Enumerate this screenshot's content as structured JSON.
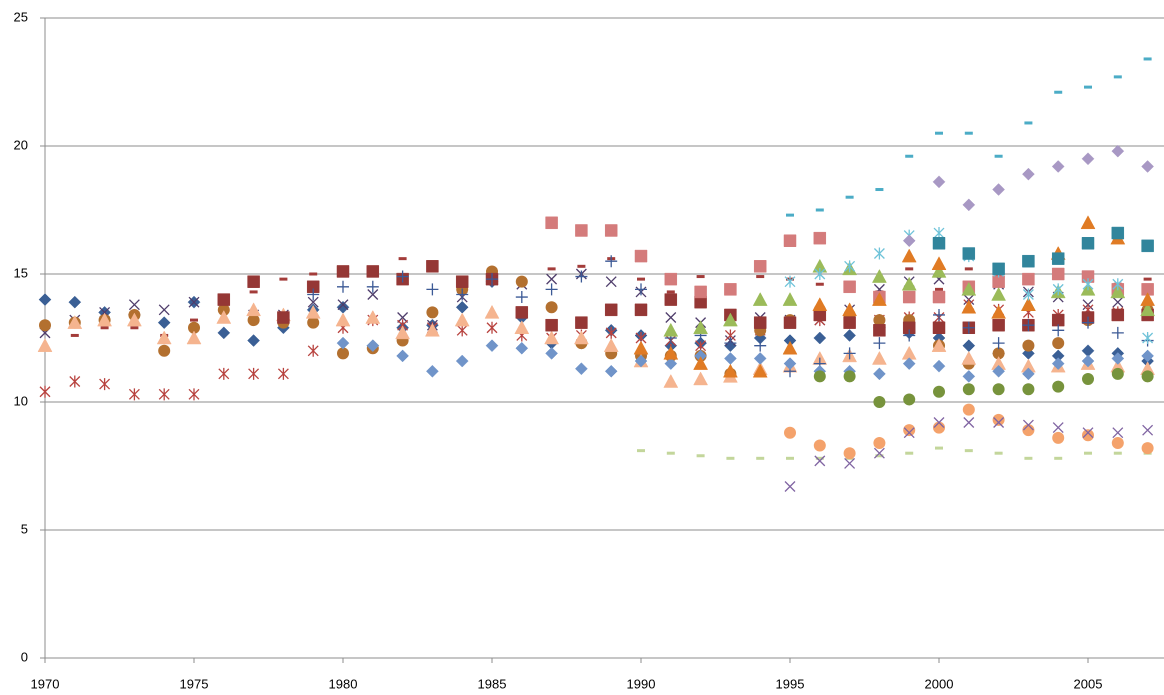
{
  "chart_data": {
    "type": "scatter",
    "xlim": [
      1970,
      2007.55
    ],
    "ylim": [
      0,
      25
    ],
    "xticks": [
      1970,
      1975,
      1980,
      1985,
      1990,
      1995,
      2000,
      2005
    ],
    "yticks": [
      0,
      5,
      10,
      15,
      20,
      25
    ],
    "grid": true,
    "series": [
      {
        "color": "#3a5f95",
        "marker": "diamond",
        "x": [
          1970,
          1971,
          1972,
          1973,
          1974,
          1975,
          1976,
          1977,
          1978,
          1979,
          1980,
          1981,
          1982,
          1983,
          1984,
          1985,
          1986,
          1987,
          1988,
          1989,
          1990,
          1991,
          1992,
          1993,
          1994,
          1995,
          1996,
          1997,
          1998,
          1999,
          2000,
          2001,
          2002,
          2003,
          2004,
          2005,
          2006,
          2007
        ],
        "values": [
          14,
          13.9,
          13.5,
          13.4,
          13.1,
          13.9,
          12.7,
          12.4,
          12.9,
          13.6,
          13.7,
          12.2,
          12.9,
          13,
          13.7,
          14.7,
          13.3,
          12.3,
          12.3,
          12.8,
          12.6,
          12.2,
          12.3,
          12.2,
          12.5,
          12.4,
          12.5,
          12.6,
          12.9,
          12.7,
          12.5,
          12.2,
          11.9,
          11.9,
          11.8,
          12,
          11.9,
          11.6
        ]
      },
      {
        "color": "#a33c3a",
        "marker": "dash",
        "x": [
          1970,
          1971,
          1972,
          1973,
          1974,
          1975,
          1976,
          1977,
          1978,
          1979,
          1980,
          1981,
          1982,
          1983,
          1984,
          1985,
          1986,
          1987,
          1988,
          1989,
          1990,
          1991,
          1992,
          1993,
          1994,
          1995,
          1996,
          1997,
          1998,
          1999,
          2000,
          2001,
          2002,
          2003,
          2004,
          2005,
          2006,
          2007
        ],
        "values": [
          12.1,
          12.6,
          12.9,
          12.9,
          12.6,
          13.2,
          14.1,
          14.3,
          14.8,
          15,
          15.1,
          15.1,
          15.6,
          15.3,
          14.4,
          15,
          14.7,
          15.2,
          15.3,
          15.6,
          14.8,
          14.3,
          14.9,
          14.4,
          14.9,
          14.8,
          14.6,
          14.4,
          14.3,
          15.2,
          14.4,
          15.2,
          15,
          14.8,
          14.9,
          14.3,
          14.6,
          14.8
        ]
      },
      {
        "color": "#4f3d6b",
        "marker": "x",
        "x": [
          1970,
          1971,
          1972,
          1973,
          1974,
          1975,
          1976,
          1977,
          1978,
          1979,
          1980,
          1981,
          1982,
          1983,
          1984,
          1985,
          1986,
          1987,
          1988,
          1989,
          1990,
          1991,
          1992,
          1993,
          1994,
          1995,
          1996,
          1997,
          1998,
          1999,
          2000,
          2001,
          2002,
          2003,
          2004,
          2005,
          2006,
          2007
        ],
        "values": [
          12.7,
          13.2,
          13.5,
          13.8,
          13.6,
          13.9,
          13.7,
          13.4,
          13.4,
          13.9,
          13.8,
          14.2,
          13.3,
          13,
          14.1,
          14.9,
          14.6,
          14.8,
          15,
          14.7,
          14.3,
          13.3,
          13.1,
          12.4,
          13.3,
          13.2,
          13.2,
          13.6,
          14.4,
          14.7,
          14.8,
          14,
          14.6,
          14.3,
          14.1,
          13.8,
          13.9,
          13.5
        ]
      },
      {
        "color": "#b8433f",
        "marker": "asterisk",
        "x": [
          1970,
          1971,
          1972,
          1973,
          1974,
          1975,
          1976,
          1977,
          1978,
          1979,
          1980,
          1981,
          1982,
          1983,
          1984,
          1985,
          1986,
          1987,
          1988,
          1989,
          1990,
          1991,
          1992,
          1993,
          1994,
          1995,
          1996,
          1997,
          1998,
          1999,
          2000,
          2001,
          2002,
          2003,
          2004,
          2005,
          2006,
          2007
        ],
        "values": [
          10.4,
          10.8,
          10.7,
          10.3,
          10.3,
          10.3,
          11.1,
          11.1,
          11.1,
          12,
          12.9,
          13.2,
          13,
          12.9,
          12.8,
          12.9,
          12.6,
          12.5,
          12.6,
          12.7,
          12.5,
          12.4,
          12.2,
          12.6,
          12.8,
          13.1,
          13.2,
          13.1,
          13.2,
          13.3,
          13.3,
          13.8,
          13.6,
          13.5,
          13.4,
          13.6,
          13.5,
          13.7
        ]
      },
      {
        "color": "#b3702f",
        "marker": "circle",
        "x": [
          1970,
          1971,
          1972,
          1973,
          1974,
          1975,
          1976,
          1977,
          1978,
          1979,
          1980,
          1981,
          1982,
          1983,
          1984,
          1985,
          1986,
          1987,
          1988,
          1989,
          1990,
          1991,
          1992,
          1993,
          1994,
          1995,
          1996,
          1997,
          1998,
          1999,
          2000,
          2001,
          2002,
          2003,
          2004,
          2005,
          2006,
          2007
        ],
        "values": [
          13,
          13.1,
          13.2,
          13.4,
          12,
          12.9,
          13.6,
          13.2,
          13.1,
          13.1,
          11.9,
          12.1,
          12.4,
          13.5,
          14.4,
          15.1,
          14.7,
          13.7,
          12.3,
          11.9,
          11.8,
          11.8,
          11.8,
          11.1,
          12.8,
          13.2,
          13.6,
          13.4,
          13.2,
          13.2,
          12.2,
          11.5,
          11.9,
          12.2,
          12.3,
          13.2,
          13.4,
          13.6
        ]
      },
      {
        "color": "#f5b48f",
        "marker": "triangle",
        "x": [
          1970,
          1971,
          1972,
          1973,
          1974,
          1975,
          1976,
          1977,
          1978,
          1979,
          1980,
          1981,
          1982,
          1983,
          1984,
          1985,
          1986,
          1987,
          1988,
          1989,
          1990,
          1991,
          1992,
          1993,
          1994,
          1995,
          1996,
          1997,
          1998,
          1999,
          2000,
          2001,
          2002,
          2003,
          2004,
          2005,
          2006,
          2007
        ],
        "values": [
          12.2,
          13.1,
          13.2,
          13.2,
          12.5,
          12.5,
          13.3,
          13.6,
          13.4,
          13.5,
          13.2,
          13.3,
          12.7,
          12.8,
          13.2,
          13.5,
          12.9,
          12.5,
          12.5,
          12.2,
          11.6,
          10.8,
          10.9,
          11,
          11.3,
          11.4,
          11.7,
          11.8,
          11.7,
          11.9,
          12.2,
          11.7,
          11.5,
          11.4,
          11.4,
          11.5,
          11.4,
          11.3
        ]
      },
      {
        "color": "#953735",
        "marker": "square",
        "x": [
          1976,
          1977,
          1978,
          1979,
          1980,
          1981,
          1982,
          1983,
          1984,
          1985,
          1986,
          1987,
          1988,
          1989,
          1990,
          1991,
          1992,
          1993,
          1994,
          1995,
          1996,
          1997,
          1998,
          1999,
          2000,
          2001,
          2002,
          2003,
          2004,
          2005,
          2006,
          2007
        ],
        "values": [
          14,
          14.7,
          13.3,
          14.5,
          15.1,
          15.1,
          14.8,
          15.3,
          14.7,
          14.8,
          13.5,
          13,
          13.1,
          13.6,
          13.6,
          14,
          13.9,
          13.4,
          13.1,
          13.1,
          13.4,
          13.1,
          12.8,
          12.9,
          12.9,
          12.9,
          13,
          13,
          13.2,
          13.3,
          13.4,
          13.4
        ]
      },
      {
        "color": "#3c5a96",
        "marker": "plus",
        "x": [
          1979,
          1980,
          1981,
          1982,
          1983,
          1984,
          1985,
          1986,
          1987,
          1988,
          1989,
          1990,
          1991,
          1992,
          1993,
          1994,
          1995,
          1996,
          1997,
          1998,
          1999,
          2000,
          2001,
          2002,
          2003,
          2004,
          2005,
          2006,
          2007
        ],
        "values": [
          14.2,
          14.5,
          14.5,
          14.9,
          14.4,
          14.2,
          14.8,
          14.1,
          14.4,
          14.9,
          15.5,
          14.4,
          12.5,
          12.6,
          12.3,
          12.2,
          11.2,
          11.5,
          11.9,
          12.3,
          12.6,
          13.4,
          12.9,
          12.3,
          13,
          12.8,
          13.1,
          12.7,
          12.4
        ]
      },
      {
        "color": "#7094c9",
        "marker": "diamond",
        "x": [
          1980,
          1981,
          1982,
          1983,
          1984,
          1985,
          1986,
          1987,
          1988,
          1989,
          1990,
          1991,
          1992,
          1993,
          1994,
          1995,
          1996,
          1997,
          1998,
          1999,
          2000,
          2001,
          2002,
          2003,
          2004,
          2005,
          2006,
          2007
        ],
        "values": [
          12.3,
          12.2,
          11.8,
          11.2,
          11.6,
          12.2,
          12.1,
          11.9,
          11.3,
          11.2,
          11.6,
          11.5,
          11.8,
          11.7,
          11.7,
          11.5,
          11.2,
          11.2,
          11.1,
          11.5,
          11.4,
          11,
          11.2,
          11.1,
          11.5,
          11.6,
          11.7,
          11.8
        ]
      },
      {
        "color": "#d47b7b",
        "marker": "square",
        "x": [
          1987,
          1988,
          1989,
          1990,
          1991,
          1992,
          1993,
          1994,
          1995,
          1996,
          1997,
          1998,
          1999,
          2000,
          2001,
          2002,
          2003,
          2004,
          2005,
          2006,
          2007
        ],
        "values": [
          17,
          16.7,
          16.7,
          15.7,
          14.8,
          14.3,
          14.4,
          15.3,
          16.3,
          16.4,
          14.5,
          14.1,
          14.1,
          14.1,
          14.5,
          14.7,
          14.8,
          15,
          14.9,
          14.4,
          14.4
        ]
      },
      {
        "color": "#9bbb59",
        "marker": "triangle",
        "x": [
          1991,
          1992,
          1993,
          1994,
          1995,
          1996,
          1997,
          1998,
          1999,
          2000,
          2001,
          2002,
          2003,
          2004,
          2005,
          2006,
          2007
        ],
        "values": [
          12.8,
          12.9,
          13.2,
          14,
          14,
          15.3,
          15.2,
          14.9,
          14.6,
          15.1,
          14.4,
          14.2,
          13.8,
          14.3,
          14.4,
          14.3,
          13.6
        ]
      },
      {
        "color": "#e07b24",
        "marker": "triangle",
        "x": [
          1990,
          1991,
          1992,
          1993,
          1994,
          1995,
          1996,
          1997,
          1998,
          1999,
          2000,
          2001,
          2002,
          2003,
          2004,
          2005,
          2006,
          2007
        ],
        "values": [
          12.1,
          11.9,
          11.5,
          11.2,
          11.2,
          12.1,
          13.8,
          13.6,
          14,
          15.7,
          15.4,
          13.7,
          13.5,
          13.8,
          15.8,
          17,
          16.4,
          14
        ]
      },
      {
        "color": "#c3d69b",
        "marker": "dash",
        "x": [
          1990,
          1991,
          1992,
          1993,
          1994,
          1995,
          1996,
          1997,
          1998,
          1999,
          2000,
          2001,
          2002,
          2003,
          2004,
          2005,
          2006,
          2007
        ],
        "values": [
          8.1,
          8,
          7.9,
          7.8,
          7.8,
          7.8,
          7.8,
          7.8,
          7.9,
          8,
          8.2,
          8.1,
          8,
          7.8,
          7.8,
          8,
          8,
          8
        ]
      },
      {
        "color": "#4bacc6",
        "marker": "dash",
        "x": [
          1995,
          1996,
          1997,
          1998,
          1999,
          2000,
          2001,
          2002,
          2003,
          2004,
          2005,
          2006,
          2007
        ],
        "values": [
          17.3,
          17.5,
          18,
          18.3,
          19.6,
          20.5,
          20.5,
          19.6,
          20.9,
          22.1,
          22.3,
          22.7,
          23.4
        ]
      },
      {
        "color": "#6fc3d9",
        "marker": "asterisk",
        "x": [
          1995,
          1996,
          1997,
          1998,
          1999,
          2000,
          2001,
          2002,
          2003,
          2004,
          2005,
          2006,
          2007
        ],
        "values": [
          14.7,
          15,
          15.3,
          15.8,
          16.5,
          16.6,
          15.7,
          15.1,
          14.2,
          14.4,
          14.6,
          14.6,
          12.5
        ]
      },
      {
        "color": "#f4a26b",
        "marker": "circle",
        "x": [
          1995,
          1996,
          1997,
          1998,
          1999,
          2000,
          2001,
          2002,
          2003,
          2004,
          2005,
          2006,
          2007
        ],
        "values": [
          8.8,
          8.3,
          8,
          8.4,
          8.9,
          9,
          9.7,
          9.3,
          8.9,
          8.6,
          8.7,
          8.4,
          8.2
        ]
      },
      {
        "color": "#8064a2",
        "marker": "x",
        "x": [
          1995,
          1996,
          1997,
          1998,
          1999,
          2000,
          2001,
          2002,
          2003,
          2004,
          2005,
          2006,
          2007
        ],
        "values": [
          6.7,
          7.7,
          7.6,
          8,
          8.8,
          9.2,
          9.2,
          9.2,
          9.1,
          9,
          8.8,
          8.8,
          8.9
        ]
      },
      {
        "color": "#77933c",
        "marker": "circle",
        "x": [
          1996,
          1997,
          1998,
          1999,
          2000,
          2001,
          2002,
          2003,
          2004,
          2005,
          2006,
          2007
        ],
        "values": [
          11,
          11,
          10,
          10.1,
          10.4,
          10.5,
          10.5,
          10.5,
          10.6,
          10.9,
          11.1,
          11
        ]
      },
      {
        "color": "#a898c4",
        "marker": "diamond",
        "x": [
          1999,
          2000,
          2001,
          2002,
          2003,
          2004,
          2005,
          2006,
          2007
        ],
        "values": [
          16.3,
          18.6,
          17.7,
          18.3,
          18.9,
          19.2,
          19.5,
          19.8,
          19.2
        ]
      },
      {
        "color": "#31859c",
        "marker": "square",
        "x": [
          2000,
          2001,
          2002,
          2003,
          2004,
          2005,
          2006,
          2007
        ],
        "values": [
          16.2,
          15.8,
          15.2,
          15.5,
          15.6,
          16.2,
          16.6,
          16.1
        ]
      }
    ]
  }
}
